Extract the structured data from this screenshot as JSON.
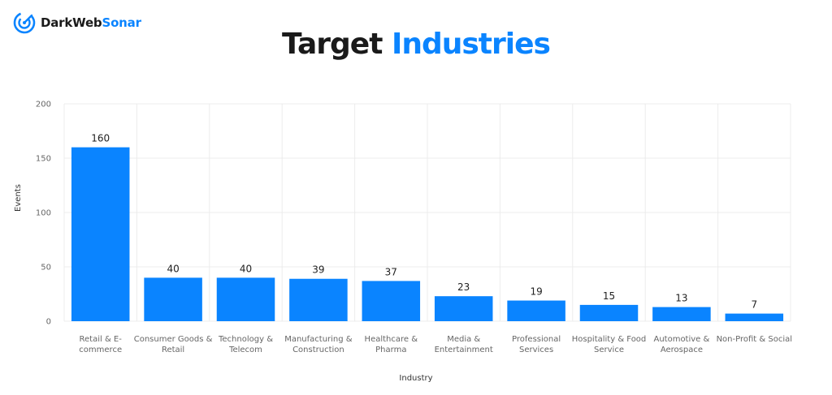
{
  "brand": {
    "name_part1": "DarkWeb",
    "name_part2": "Sonar",
    "accent_color": "#0a84ff",
    "icon": "sonar-logo-icon"
  },
  "title": {
    "part1": "Target",
    "part2": "Industries"
  },
  "chart_data": {
    "type": "bar",
    "title": "Target Industries",
    "xlabel": "Industry",
    "ylabel": "Events",
    "ylim": [
      0,
      200
    ],
    "yticks": [
      0,
      50,
      100,
      150,
      200
    ],
    "grid": true,
    "bar_color": "#0a84ff",
    "categories": [
      [
        "Retail & E-",
        "commerce"
      ],
      [
        "Consumer Goods &",
        "Retail"
      ],
      [
        "Technology &",
        "Telecom"
      ],
      [
        "Manufacturing &",
        "Construction"
      ],
      [
        "Healthcare &",
        "Pharma"
      ],
      [
        "Media &",
        "Entertainment"
      ],
      [
        "Professional",
        "Services"
      ],
      [
        "Hospitality & Food",
        "Service"
      ],
      [
        "Automotive &",
        "Aerospace"
      ],
      [
        "Non-Profit & Social"
      ]
    ],
    "values": [
      160,
      40,
      40,
      39,
      37,
      23,
      19,
      15,
      13,
      7
    ]
  }
}
